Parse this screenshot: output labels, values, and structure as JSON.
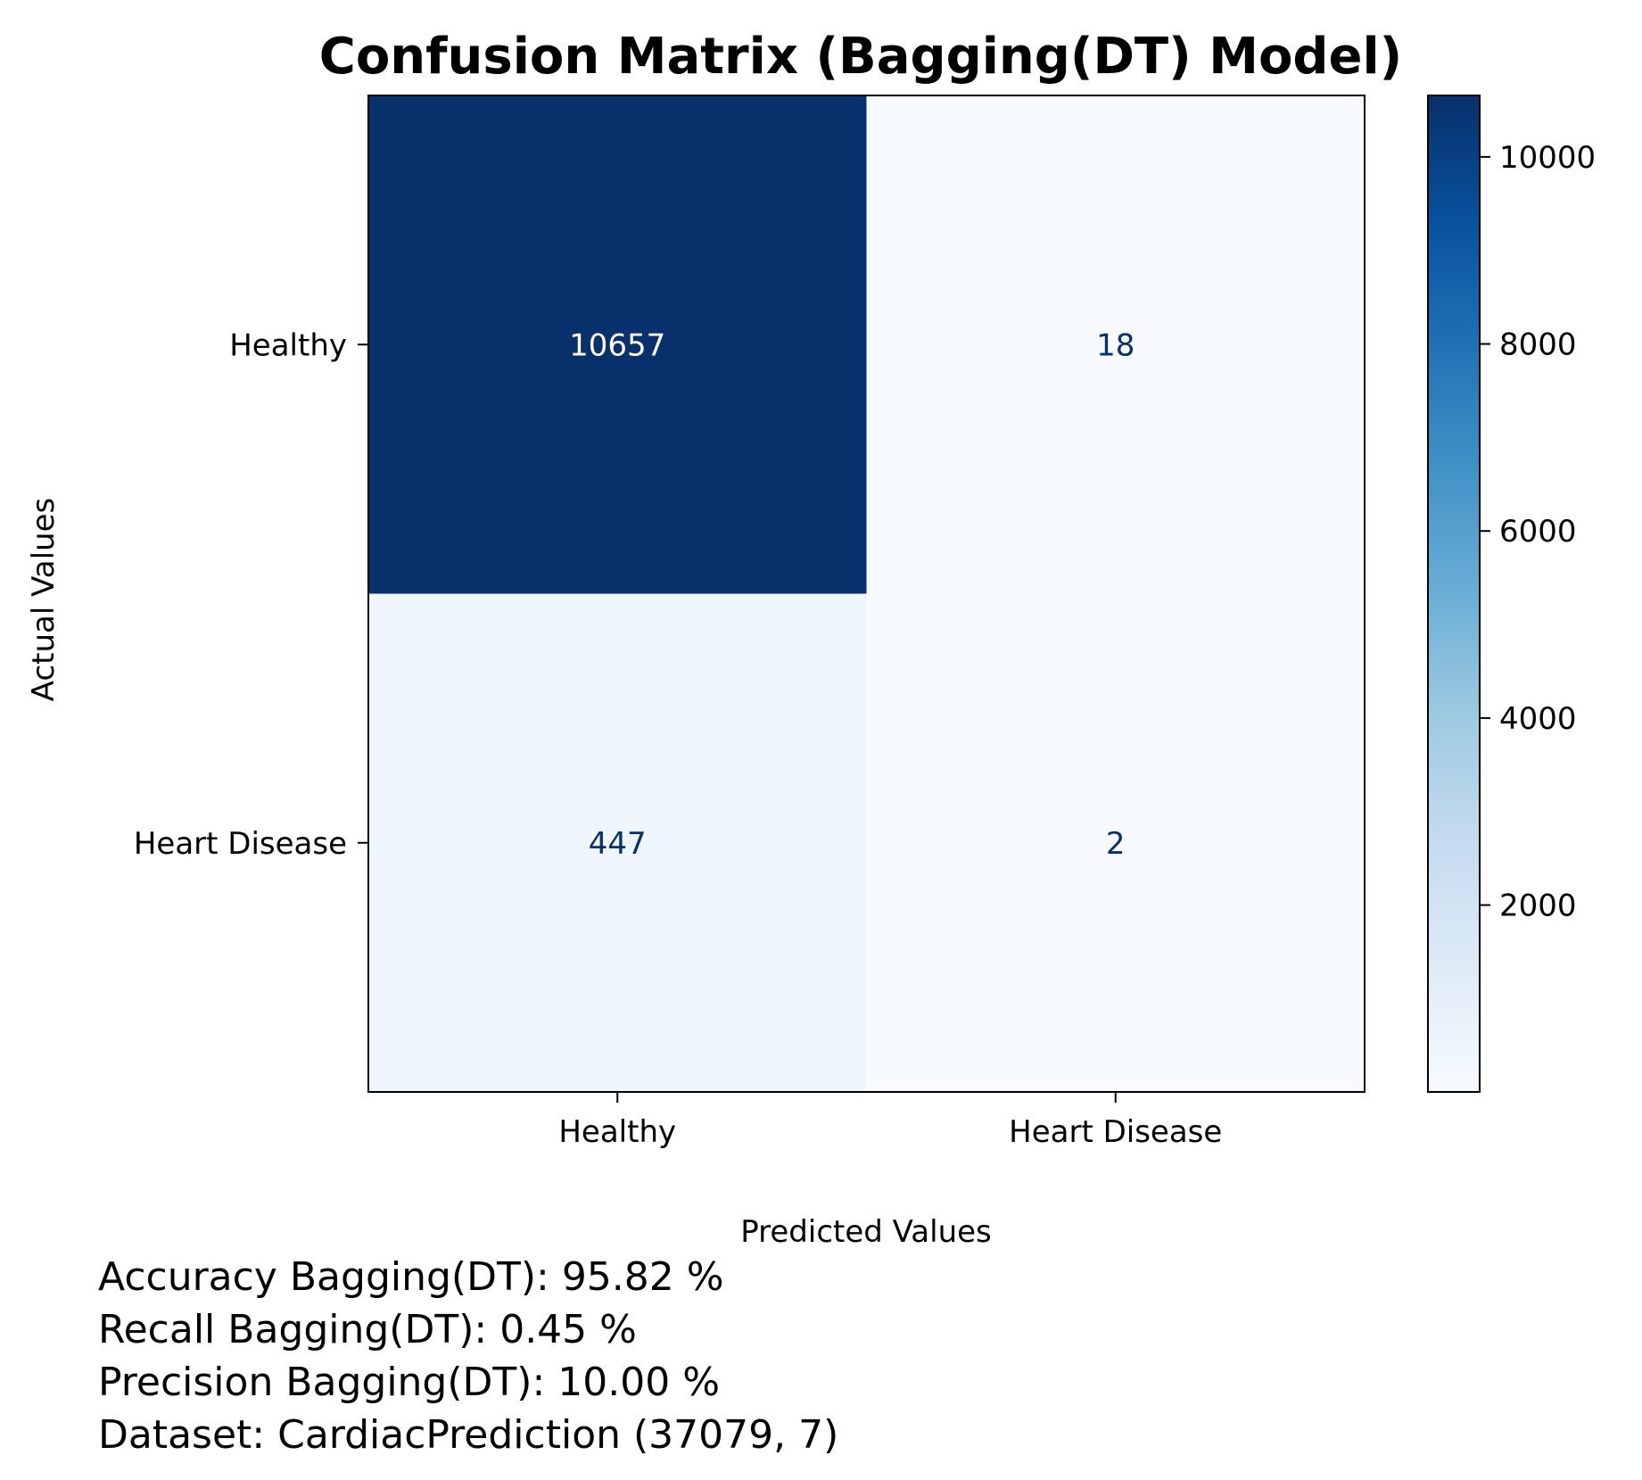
{
  "chart_data": {
    "type": "heatmap",
    "title": "Confusion Matrix (Bagging(DT) Model)",
    "xlabel": "Predicted Values",
    "ylabel": "Actual Values",
    "x_categories": [
      "Healthy",
      "Heart Disease"
    ],
    "y_categories": [
      "Healthy",
      "Heart Disease"
    ],
    "matrix": [
      [
        10657,
        18
      ],
      [
        447,
        2
      ]
    ],
    "colormap": "Blues",
    "colorbar": {
      "ticks": [
        2000,
        4000,
        6000,
        8000,
        10000
      ],
      "range": [
        2,
        10657
      ]
    },
    "grid": false
  },
  "stats": {
    "accuracy": "Accuracy Bagging(DT): 95.82 %",
    "recall": "Recall Bagging(DT): 0.45 %",
    "precision": "Precision Bagging(DT): 10.00 %",
    "dataset": "Dataset: CardiacPrediction (37079, 7)"
  },
  "colors": {
    "blues_low": "#f7fbff",
    "blues_high": "#08306b",
    "text_on_dark": "#ffffff",
    "text_on_light": "#08306b"
  }
}
